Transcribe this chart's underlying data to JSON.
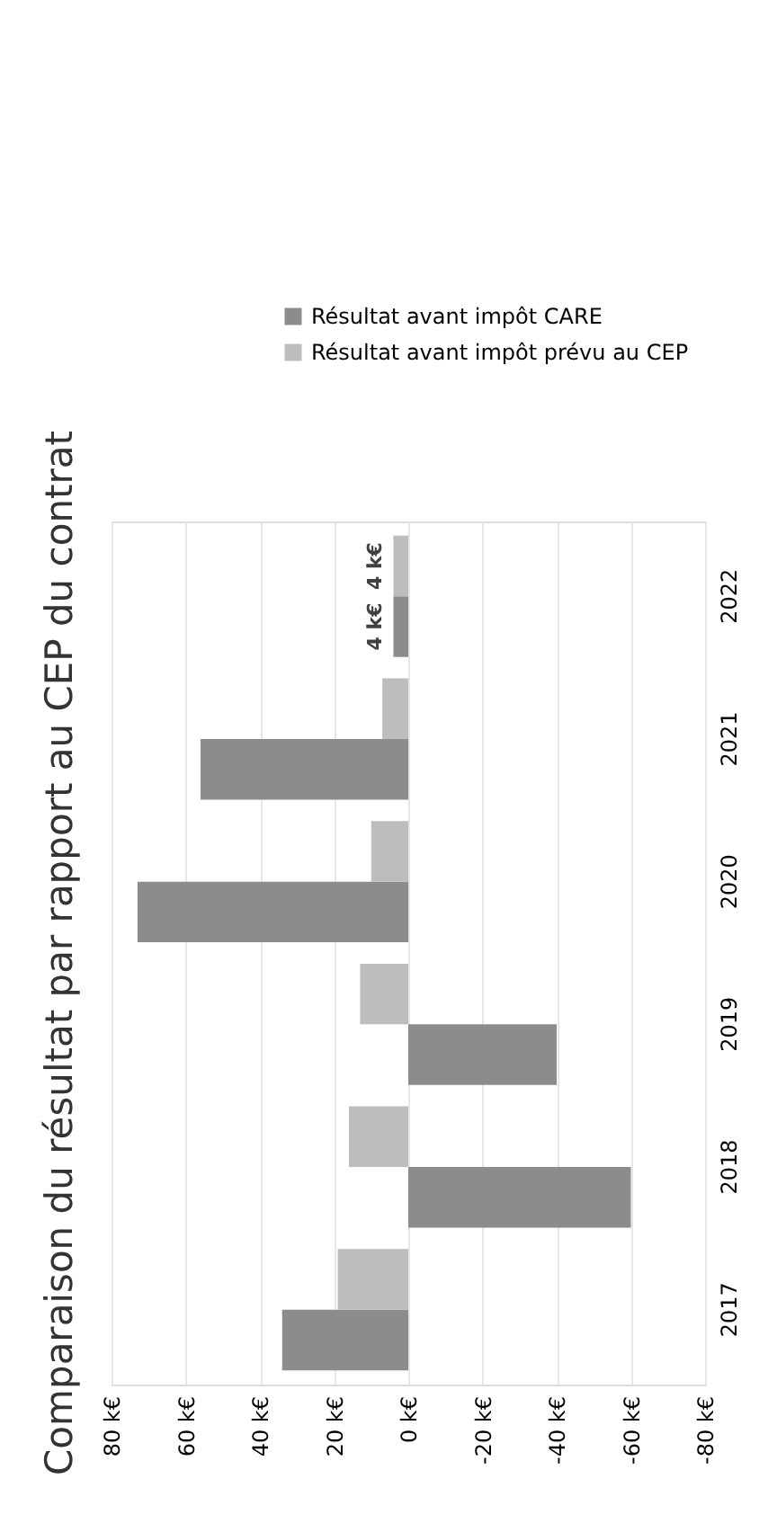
{
  "chart_data": {
    "type": "bar",
    "orientation": "horizontal",
    "title": "Comparaison du résultat par rapport au CEP du contrat",
    "categories": [
      "2022",
      "2021",
      "2020",
      "2019",
      "2018",
      "2017"
    ],
    "series": [
      {
        "name": "Résultat avant impôt CARE",
        "color": "#8c8c8c",
        "values": [
          4,
          56,
          73,
          -40,
          -60,
          34
        ],
        "value_labels": [
          "4 k€",
          null,
          null,
          null,
          null,
          null
        ]
      },
      {
        "name": "Résultat avant impôt prévu au CEP",
        "color": "#bdbdbd",
        "values": [
          4,
          7,
          10,
          13,
          16,
          19
        ],
        "value_labels": [
          "4 k€",
          null,
          null,
          null,
          null,
          null
        ]
      }
    ],
    "xlim": [
      80,
      -80
    ],
    "xticks": [
      {
        "value": 80,
        "label": "80 k€"
      },
      {
        "value": 60,
        "label": "60 k€"
      },
      {
        "value": 40,
        "label": "40 k€"
      },
      {
        "value": 20,
        "label": "20 k€"
      },
      {
        "value": 0,
        "label": "0 k€"
      },
      {
        "value": -20,
        "label": "-20 k€"
      },
      {
        "value": -40,
        "label": "-40 k€"
      },
      {
        "value": -60,
        "label": "-60 k€"
      },
      {
        "value": -80,
        "label": "-80 k€"
      }
    ],
    "grid": "x",
    "legend": "top"
  }
}
